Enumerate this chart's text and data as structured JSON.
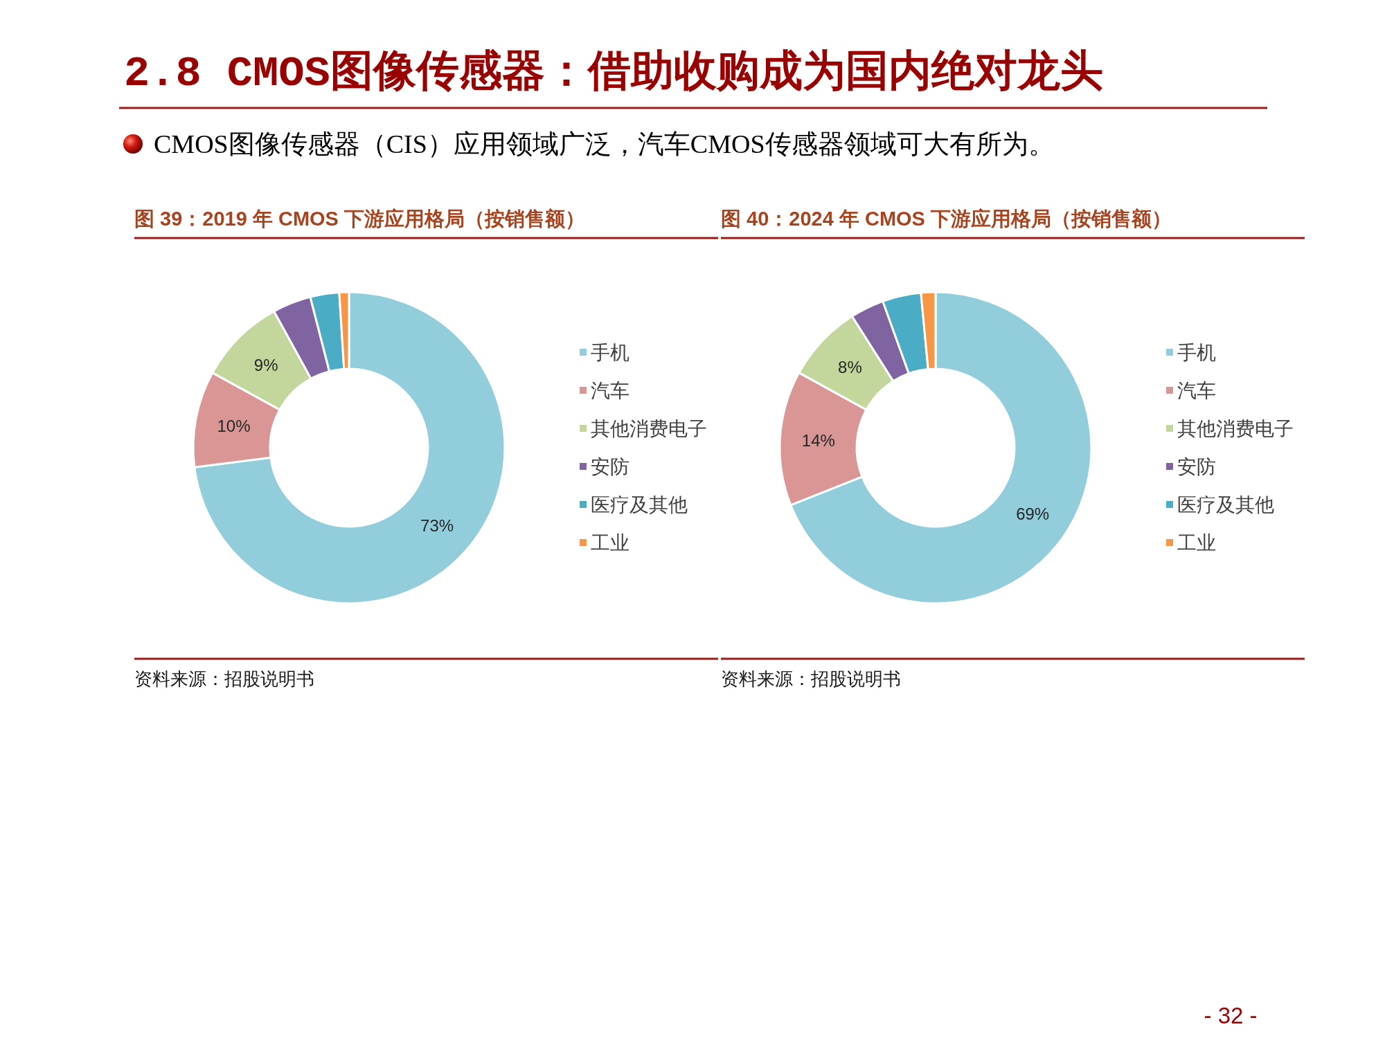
{
  "chart_data": [
    {
      "type": "other",
      "title": "2.8 CMOS图像传感器：借助收购成为国内绝对龙头",
      "subtitle": "CMOS图像传感器（CIS）应用领域广泛，汽车CMOS传感器领域可大有所为。",
      "annotations": [
        "- 32 -"
      ]
    },
    {
      "type": "donut",
      "title": "图 39：2019 年 CMOS 下游应用格局（按销售额）",
      "categories": [
        "手机",
        "汽车",
        "其他消费电子",
        "安防",
        "医疗及其他",
        "工业"
      ],
      "values": [
        73,
        10,
        9,
        4,
        3,
        1
      ],
      "colors": [
        "#92cddc",
        "#d99694",
        "#c3d69b",
        "#8064a2",
        "#4bacc6",
        "#f79646"
      ],
      "value_labels": [
        "73%",
        "10%",
        "9%",
        null,
        null,
        null
      ],
      "legend": "right",
      "annotations": [
        "资料来源：招股说明书"
      ]
    },
    {
      "type": "donut",
      "title": "图 40：2024 年 CMOS 下游应用格局（按销售额）",
      "categories": [
        "手机",
        "汽车",
        "其他消费电子",
        "安防",
        "医疗及其他",
        "工业"
      ],
      "values": [
        69,
        14,
        8,
        3.5,
        4,
        1.5
      ],
      "colors": [
        "#92cddc",
        "#d99694",
        "#c3d69b",
        "#8064a2",
        "#4bacc6",
        "#f79646"
      ],
      "value_labels": [
        "69%",
        "14%",
        "8%",
        null,
        null,
        null
      ],
      "legend": "right",
      "annotations": [
        "资料来源：招股说明书"
      ]
    }
  ]
}
